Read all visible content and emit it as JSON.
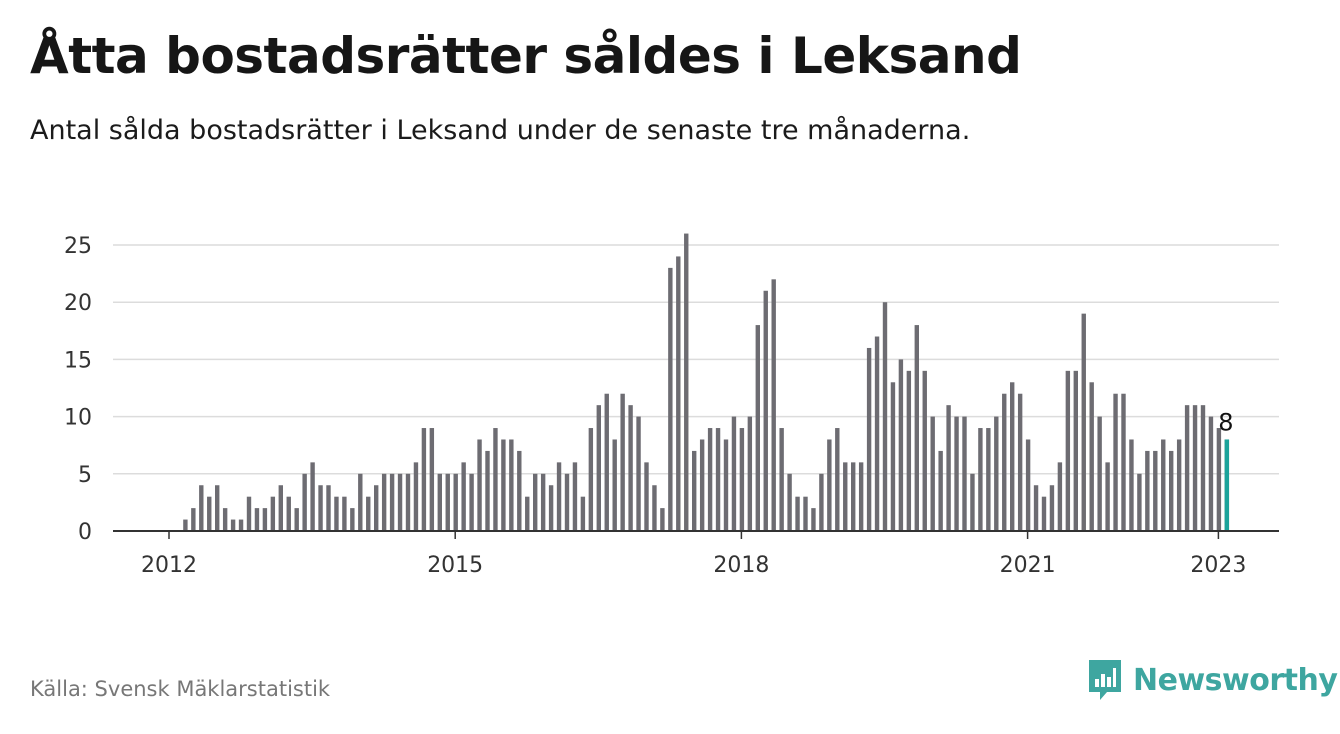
{
  "title": "Åtta bostadsrätter såldes i Leksand",
  "subtitle": "Antal sålda bostadsrätter i Leksand under de senaste tre månaderna.",
  "source": "Källa: Svensk Mäklarstatistik",
  "brand": {
    "name": "Newsworthy",
    "color": "#3ea6a0"
  },
  "colors": {
    "bar": "#6d6c72",
    "highlight": "#1aa39b",
    "grid": "#dcdcdc",
    "axis": "#333333"
  },
  "chart_data": {
    "type": "bar",
    "ylim": [
      0,
      25
    ],
    "yticks": [
      0,
      5,
      10,
      15,
      20,
      25
    ],
    "xticks": [
      {
        "label": "2012",
        "index": 0
      },
      {
        "label": "2015",
        "index": 36
      },
      {
        "label": "2018",
        "index": 72
      },
      {
        "label": "2021",
        "index": 108
      },
      {
        "label": "2023",
        "index": 132
      }
    ],
    "period": "monthly, Jan 2012 – Jan 2023",
    "values": [
      0,
      0,
      1,
      2,
      4,
      3,
      4,
      2,
      1,
      1,
      3,
      2,
      2,
      3,
      4,
      3,
      2,
      5,
      6,
      4,
      4,
      3,
      3,
      2,
      5,
      3,
      4,
      5,
      5,
      5,
      5,
      6,
      9,
      9,
      5,
      5,
      5,
      6,
      5,
      8,
      7,
      9,
      8,
      8,
      7,
      3,
      5,
      5,
      4,
      6,
      5,
      6,
      3,
      9,
      11,
      12,
      8,
      12,
      11,
      10,
      6,
      4,
      2,
      23,
      24,
      26,
      7,
      8,
      9,
      9,
      8,
      10,
      9,
      10,
      18,
      21,
      22,
      9,
      5,
      3,
      3,
      2,
      5,
      8,
      9,
      6,
      6,
      6,
      16,
      17,
      20,
      13,
      15,
      14,
      18,
      14,
      10,
      7,
      11,
      10,
      10,
      5,
      9,
      9,
      10,
      12,
      13,
      12,
      8,
      4,
      3,
      4,
      6,
      14,
      14,
      19,
      13,
      10,
      6,
      12,
      12,
      8,
      5,
      7,
      7,
      8,
      7,
      8,
      11,
      11,
      11,
      10,
      9,
      8
    ],
    "highlight_index": 133,
    "highlight_label": "8"
  }
}
